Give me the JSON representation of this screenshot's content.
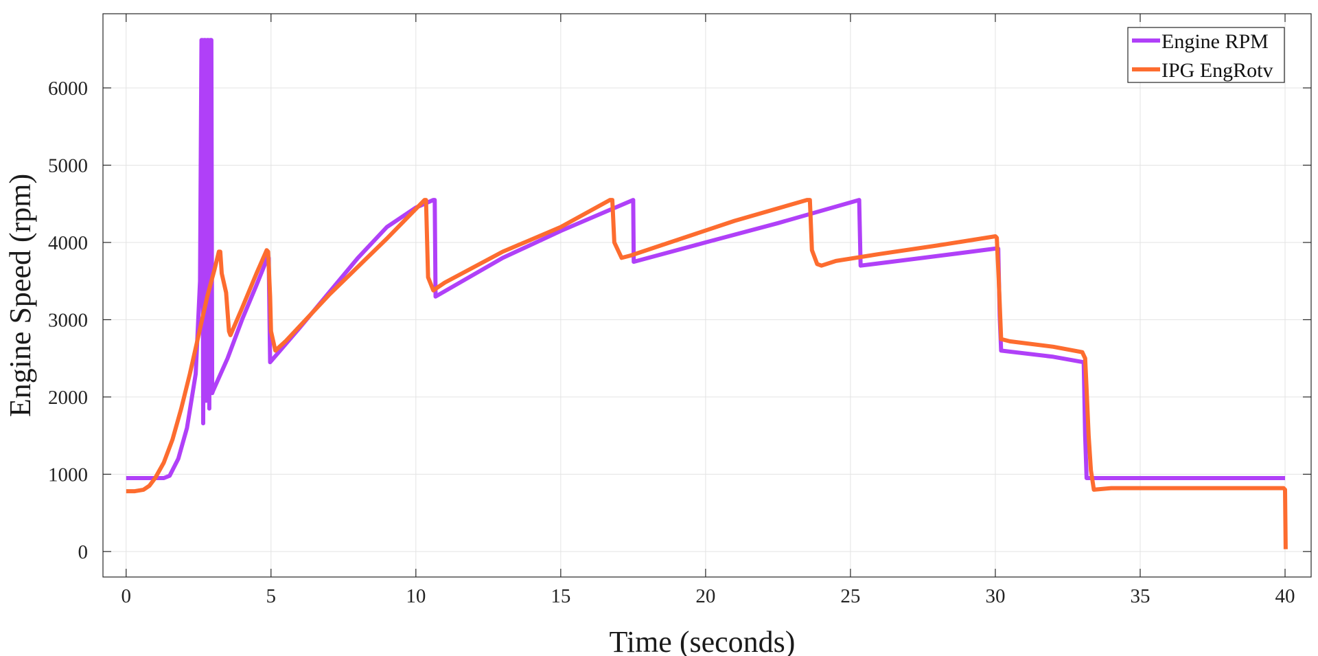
{
  "chart_data": {
    "type": "line",
    "xlabel": "Time (seconds)",
    "ylabel": "Engine Speed (rpm)",
    "xlim": [
      -0.8,
      40.9
    ],
    "ylim": [
      -330,
      6960
    ],
    "xticks": [
      0,
      5,
      10,
      15,
      20,
      25,
      30,
      35,
      40
    ],
    "yticks": [
      0,
      1000,
      2000,
      3000,
      4000,
      5000,
      6000
    ],
    "grid": true,
    "legend_position": "top-right",
    "series": [
      {
        "name": "Engine RPM",
        "color": "#b040f8",
        "points": [
          [
            0.0,
            950
          ],
          [
            1.3,
            950
          ],
          [
            1.5,
            980
          ],
          [
            1.8,
            1200
          ],
          [
            2.1,
            1600
          ],
          [
            2.4,
            2300
          ],
          [
            2.55,
            3500
          ],
          [
            2.6,
            6620
          ],
          [
            2.63,
            6620
          ],
          [
            2.66,
            1660
          ],
          [
            2.69,
            6620
          ],
          [
            2.73,
            6620
          ],
          [
            2.76,
            1950
          ],
          [
            2.8,
            6620
          ],
          [
            2.84,
            6620
          ],
          [
            2.87,
            1850
          ],
          [
            2.9,
            6620
          ],
          [
            2.94,
            6620
          ],
          [
            2.97,
            2050
          ],
          [
            3.0,
            2080
          ],
          [
            3.5,
            2500
          ],
          [
            4.0,
            3000
          ],
          [
            4.5,
            3450
          ],
          [
            4.88,
            3800
          ],
          [
            4.92,
            3800
          ],
          [
            4.97,
            2450
          ],
          [
            6.0,
            2900
          ],
          [
            7.0,
            3350
          ],
          [
            8.0,
            3800
          ],
          [
            9.0,
            4200
          ],
          [
            10.0,
            4450
          ],
          [
            10.6,
            4550
          ],
          [
            10.65,
            4550
          ],
          [
            10.68,
            3300
          ],
          [
            13.0,
            3800
          ],
          [
            15.0,
            4150
          ],
          [
            17.5,
            4550
          ],
          [
            17.52,
            3750
          ],
          [
            20.0,
            4000
          ],
          [
            22.5,
            4250
          ],
          [
            25.3,
            4550
          ],
          [
            25.35,
            3700
          ],
          [
            27.5,
            3800
          ],
          [
            30.0,
            3920
          ],
          [
            30.1,
            3920
          ],
          [
            30.15,
            3050
          ],
          [
            30.2,
            2600
          ],
          [
            32.0,
            2520
          ],
          [
            33.05,
            2450
          ],
          [
            33.1,
            1500
          ],
          [
            33.15,
            950
          ],
          [
            40.0,
            950
          ]
        ]
      },
      {
        "name": "IPG EngRotv",
        "color": "#fd6c2f",
        "points": [
          [
            0.0,
            780
          ],
          [
            0.3,
            780
          ],
          [
            0.6,
            800
          ],
          [
            0.8,
            850
          ],
          [
            1.0,
            950
          ],
          [
            1.3,
            1150
          ],
          [
            1.6,
            1450
          ],
          [
            1.9,
            1850
          ],
          [
            2.2,
            2300
          ],
          [
            2.5,
            2800
          ],
          [
            2.8,
            3300
          ],
          [
            3.05,
            3650
          ],
          [
            3.2,
            3880
          ],
          [
            3.25,
            3880
          ],
          [
            3.3,
            3600
          ],
          [
            3.45,
            3350
          ],
          [
            3.55,
            2850
          ],
          [
            3.6,
            2800
          ],
          [
            4.0,
            3150
          ],
          [
            4.5,
            3600
          ],
          [
            4.85,
            3900
          ],
          [
            4.9,
            3880
          ],
          [
            4.97,
            3300
          ],
          [
            5.0,
            2850
          ],
          [
            5.15,
            2600
          ],
          [
            5.5,
            2720
          ],
          [
            7.0,
            3320
          ],
          [
            9.0,
            4050
          ],
          [
            10.3,
            4550
          ],
          [
            10.35,
            4550
          ],
          [
            10.42,
            3550
          ],
          [
            10.6,
            3380
          ],
          [
            11.0,
            3480
          ],
          [
            13.0,
            3880
          ],
          [
            15.0,
            4200
          ],
          [
            16.7,
            4550
          ],
          [
            16.78,
            4550
          ],
          [
            16.85,
            4000
          ],
          [
            17.1,
            3800
          ],
          [
            17.4,
            3830
          ],
          [
            19.0,
            4030
          ],
          [
            21.0,
            4280
          ],
          [
            23.5,
            4550
          ],
          [
            23.6,
            4550
          ],
          [
            23.67,
            3900
          ],
          [
            23.85,
            3720
          ],
          [
            24.0,
            3700
          ],
          [
            24.5,
            3760
          ],
          [
            26.0,
            3850
          ],
          [
            28.0,
            3960
          ],
          [
            30.0,
            4080
          ],
          [
            30.05,
            4060
          ],
          [
            30.12,
            3500
          ],
          [
            30.2,
            2750
          ],
          [
            30.5,
            2720
          ],
          [
            32.0,
            2650
          ],
          [
            33.0,
            2580
          ],
          [
            33.1,
            2500
          ],
          [
            33.15,
            2100
          ],
          [
            33.22,
            1500
          ],
          [
            33.3,
            1050
          ],
          [
            33.4,
            800
          ],
          [
            34.0,
            820
          ],
          [
            39.95,
            820
          ],
          [
            40.0,
            800
          ],
          [
            40.02,
            30
          ]
        ]
      }
    ]
  }
}
